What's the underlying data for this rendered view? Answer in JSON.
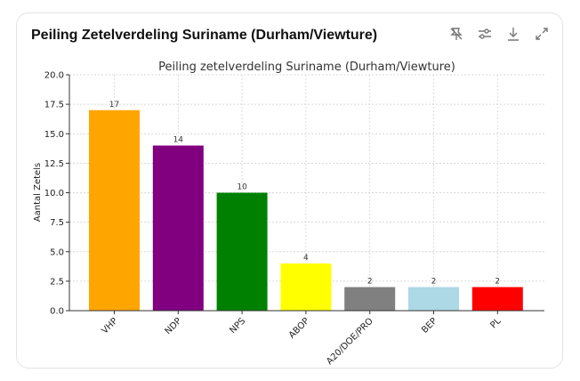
{
  "card": {
    "title": "Peiling Zetelverdeling Suriname (Durham/Viewture)"
  },
  "toolbar": {
    "icons": [
      "unpin-icon",
      "settings-sliders-icon",
      "download-icon",
      "expand-icon"
    ]
  },
  "chart_data": {
    "type": "bar",
    "title": "Peiling zetelverdeling Suriname (Durham/Viewture)",
    "xlabel": "",
    "ylabel": "Aantal Zetels",
    "categories": [
      "VHP",
      "NDP",
      "NPS",
      "ABOP",
      "A20/DOE/PRO",
      "BEP",
      "PL"
    ],
    "values": [
      17,
      14,
      10,
      4,
      2,
      2,
      2
    ],
    "data_labels": [
      "17",
      "14",
      "10",
      "4",
      "2",
      "2",
      "2"
    ],
    "colors": [
      "#ffa500",
      "#800080",
      "#008000",
      "#ffff00",
      "#808080",
      "#add8e6",
      "#ff0000"
    ],
    "ylim": [
      0,
      20
    ],
    "yticks": [
      "0.0",
      "2.5",
      "5.0",
      "7.5",
      "10.0",
      "12.5",
      "15.0",
      "17.5",
      "20.0"
    ],
    "grid": true
  }
}
